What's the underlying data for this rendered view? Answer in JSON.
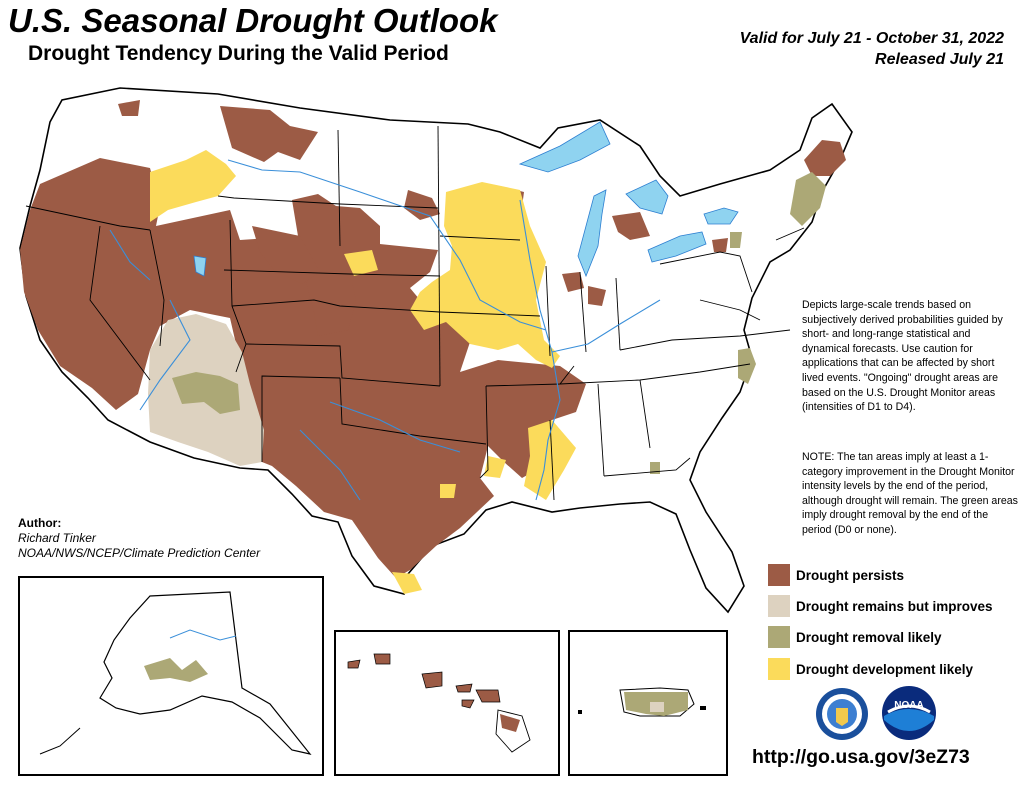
{
  "title": "U.S. Seasonal Drought Outlook",
  "subtitle": "Drought Tendency During the Valid Period",
  "valid": "Valid for July 21 - October 31, 2022",
  "released": "Released July 21",
  "description": "Depicts large-scale trends based on subjectively derived probabilities guided by short- and long-range statistical and dynamical forecasts. Use caution for applications that can be affected by short lived events. \"Ongoing\" drought areas are based on the U.S. Drought Monitor areas (intensities of D1 to D4).",
  "note": "NOTE: The tan areas imply at least a 1-category improvement in the Drought Monitor intensity levels by the end of the period, although drought will remain. The green areas imply drought removal by the end of the period (D0 or none).",
  "author": {
    "heading": "Author:",
    "name": "Richard Tinker",
    "org": "NOAA/NWS/NCEP/Climate Prediction Center"
  },
  "legend": [
    {
      "label": "Drought persists",
      "color": "#9c5b45"
    },
    {
      "label": "Drought remains but improves",
      "color": "#ddd2c0"
    },
    {
      "label": "Drought removal likely",
      "color": "#aca876"
    },
    {
      "label": "Drought development likely",
      "color": "#fbdb5b"
    }
  ],
  "url": "http://go.usa.gov/3eZ73",
  "colors": {
    "water": "#8fd3f0",
    "rivers": "#3a8fd9",
    "boundaries": "#000000"
  },
  "logos": [
    "doc-seal-icon",
    "noaa-logo-icon"
  ],
  "noaa_logo_text": "NOAA"
}
